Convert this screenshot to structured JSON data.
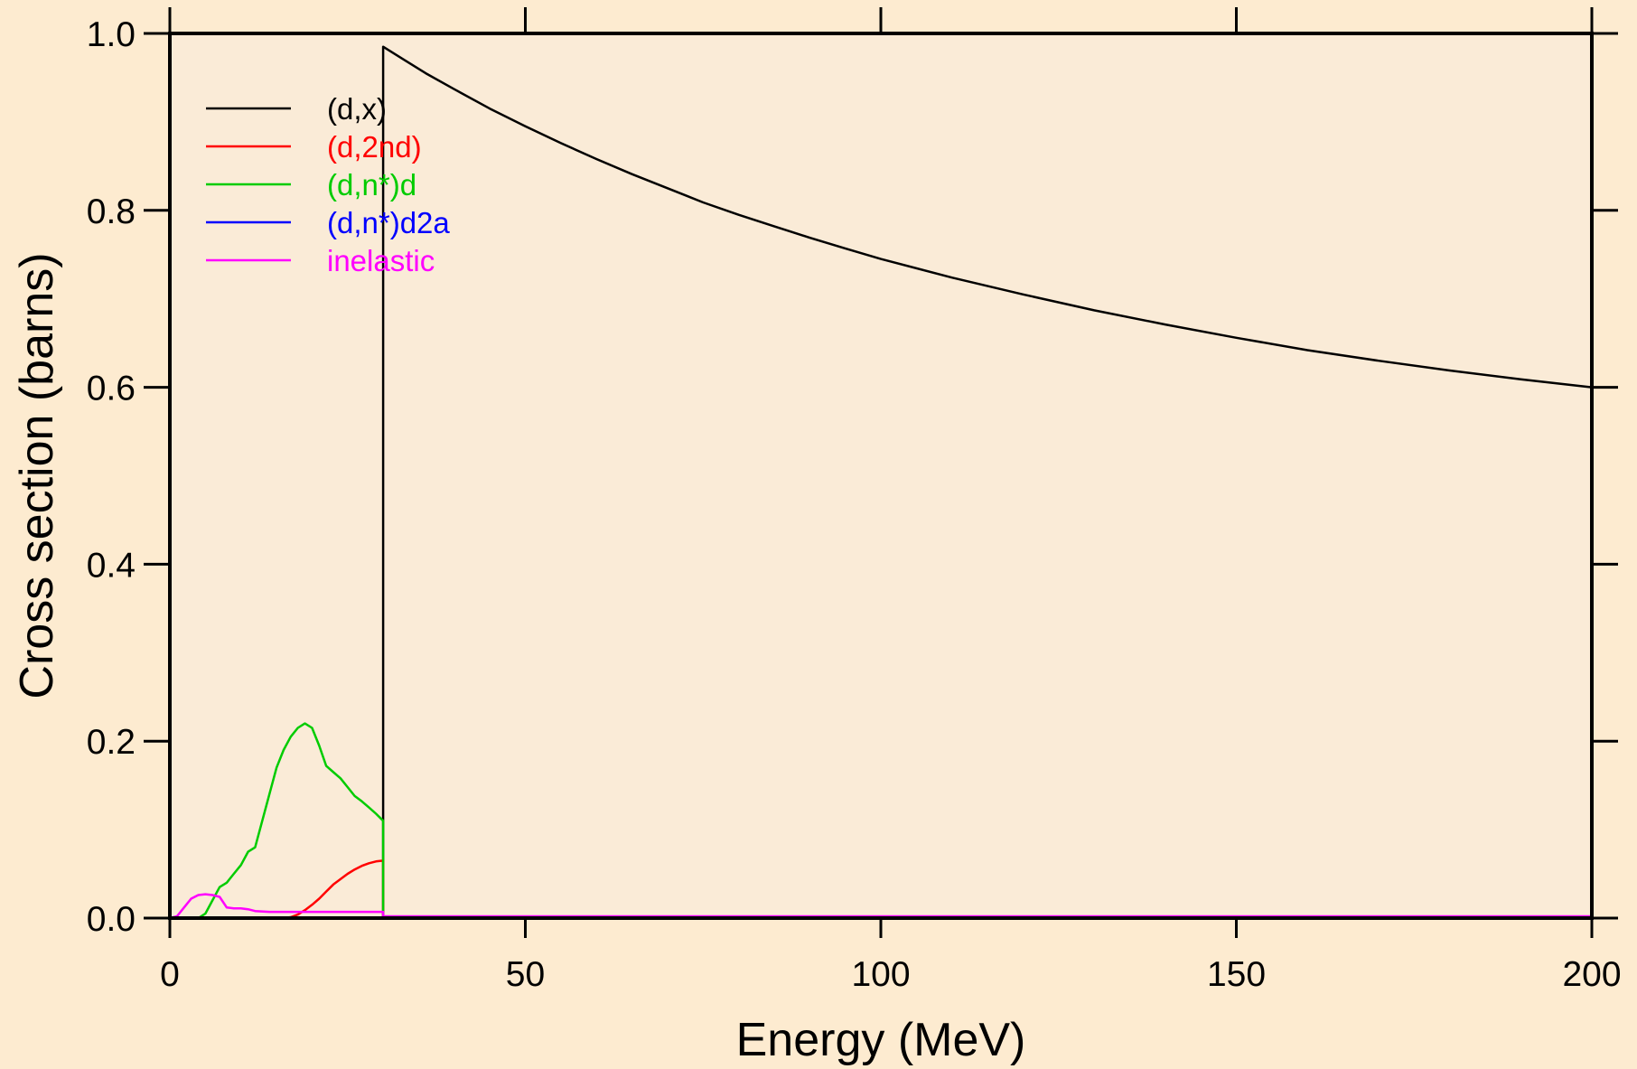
{
  "chart_data": {
    "type": "line",
    "title": "",
    "xlabel": "Energy (MeV)",
    "ylabel": "Cross section (barns)",
    "xlim": [
      0,
      200
    ],
    "ylim": [
      0,
      1.0
    ],
    "x_ticks": [
      "0",
      "50",
      "100",
      "150",
      "200"
    ],
    "y_ticks": [
      "0.0",
      "0.2",
      "0.4",
      "0.6",
      "0.8",
      "1.0"
    ],
    "grid": false,
    "legend_position": "top-left",
    "background_color": "#fdebd0",
    "plot_background_color": "#faebd7",
    "series": [
      {
        "name": "(d,x)",
        "color": "#000000",
        "points": [
          [
            0,
            0
          ],
          [
            30,
            0
          ],
          [
            30,
            0.985
          ],
          [
            33,
            0.97
          ],
          [
            36,
            0.955
          ],
          [
            40,
            0.937
          ],
          [
            45,
            0.915
          ],
          [
            50,
            0.895
          ],
          [
            55,
            0.876
          ],
          [
            60,
            0.858
          ],
          [
            65,
            0.841
          ],
          [
            70,
            0.825
          ],
          [
            75,
            0.809
          ],
          [
            80,
            0.795
          ],
          [
            85,
            0.782
          ],
          [
            90,
            0.769
          ],
          [
            95,
            0.757
          ],
          [
            100,
            0.745
          ],
          [
            110,
            0.724
          ],
          [
            120,
            0.705
          ],
          [
            130,
            0.687
          ],
          [
            140,
            0.671
          ],
          [
            150,
            0.656
          ],
          [
            160,
            0.642
          ],
          [
            170,
            0.63
          ],
          [
            180,
            0.619
          ],
          [
            190,
            0.609
          ],
          [
            200,
            0.6
          ]
        ]
      },
      {
        "name": "(d,2nd)",
        "color": "#ff0000",
        "points": [
          [
            0,
            0
          ],
          [
            16,
            0
          ],
          [
            17,
            0.001
          ],
          [
            18,
            0.004
          ],
          [
            19,
            0.009
          ],
          [
            20,
            0.015
          ],
          [
            21,
            0.022
          ],
          [
            22,
            0.03
          ],
          [
            23,
            0.038
          ],
          [
            24,
            0.044
          ],
          [
            25,
            0.05
          ],
          [
            26,
            0.055
          ],
          [
            27,
            0.059
          ],
          [
            28,
            0.062
          ],
          [
            29,
            0.064
          ],
          [
            30,
            0.065
          ],
          [
            30,
            0
          ],
          [
            200,
            0
          ]
        ]
      },
      {
        "name": "(d,n*)d",
        "color": "#00cc00",
        "points": [
          [
            0,
            0
          ],
          [
            4,
            0
          ],
          [
            5,
            0.005
          ],
          [
            6,
            0.02
          ],
          [
            7,
            0.035
          ],
          [
            8,
            0.04
          ],
          [
            9,
            0.05
          ],
          [
            10,
            0.06
          ],
          [
            11,
            0.075
          ],
          [
            12,
            0.08
          ],
          [
            13,
            0.11
          ],
          [
            14,
            0.14
          ],
          [
            15,
            0.17
          ],
          [
            16,
            0.19
          ],
          [
            17,
            0.205
          ],
          [
            18,
            0.215
          ],
          [
            19,
            0.22
          ],
          [
            20,
            0.215
          ],
          [
            21,
            0.195
          ],
          [
            22,
            0.172
          ],
          [
            23,
            0.165
          ],
          [
            24,
            0.158
          ],
          [
            25,
            0.148
          ],
          [
            26,
            0.138
          ],
          [
            27,
            0.132
          ],
          [
            28,
            0.125
          ],
          [
            29,
            0.118
          ],
          [
            30,
            0.11
          ],
          [
            30,
            0
          ],
          [
            200,
            0
          ]
        ]
      },
      {
        "name": "(d,n*)d2a",
        "color": "#0000ff",
        "points": [
          [
            0,
            0
          ],
          [
            200,
            0
          ]
        ]
      },
      {
        "name": "inelastic",
        "color": "#ff00ff",
        "points": [
          [
            0,
            0
          ],
          [
            1,
            0.002
          ],
          [
            2,
            0.012
          ],
          [
            3,
            0.022
          ],
          [
            4,
            0.026
          ],
          [
            5,
            0.027
          ],
          [
            6,
            0.026
          ],
          [
            7,
            0.024
          ],
          [
            8,
            0.012
          ],
          [
            9,
            0.011
          ],
          [
            10,
            0.011
          ],
          [
            11,
            0.01
          ],
          [
            12,
            0.008
          ],
          [
            14,
            0.007
          ],
          [
            17,
            0.007
          ],
          [
            20,
            0.007
          ],
          [
            25,
            0.007
          ],
          [
            30,
            0.007
          ],
          [
            30,
            0.002
          ],
          [
            200,
            0.002
          ]
        ]
      }
    ]
  }
}
